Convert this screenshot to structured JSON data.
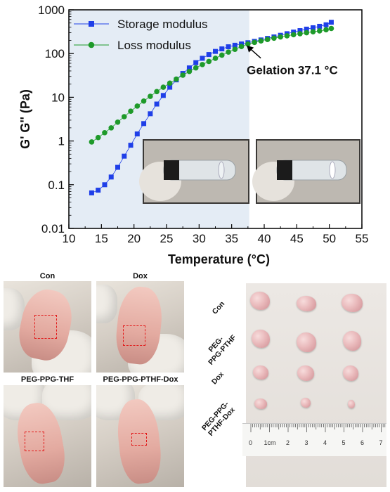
{
  "chart_data": {
    "type": "scatter",
    "xlabel": "Temperature (°C)",
    "ylabel": "G' G'' (Pa)",
    "xlim": [
      10,
      55
    ],
    "ylim": [
      0.01,
      1000
    ],
    "yscale": "log",
    "xticks": [
      "10",
      "15",
      "20",
      "25",
      "30",
      "35",
      "40",
      "45",
      "50",
      "55"
    ],
    "yticks": [
      "0.01",
      "0.1",
      "1",
      "10",
      "100",
      "1000"
    ],
    "legend_position": "top-left",
    "shaded_region": [
      10,
      37.7
    ],
    "shade_color": "#e4ecf5",
    "annotation": {
      "text": "Gelation 37.1 °C",
      "x": 37.1,
      "y": 165
    },
    "series": [
      {
        "name": "Storage modulus",
        "marker": "square",
        "color": "#1f3fe8",
        "x": [
          13.5,
          14.5,
          15.5,
          16.5,
          17.5,
          18.5,
          19.5,
          20.5,
          21.5,
          22.5,
          23.5,
          24.5,
          25.5,
          26.5,
          27.5,
          28.5,
          29.5,
          30.5,
          31.5,
          32.5,
          33.5,
          34.5,
          35.5,
          36.5,
          37.5,
          38.5,
          39.5,
          40.5,
          41.5,
          42.5,
          43.5,
          44.5,
          45.5,
          46.5,
          47.5,
          48.5,
          49.5,
          50.3
        ],
        "y": [
          0.065,
          0.075,
          0.1,
          0.15,
          0.25,
          0.45,
          0.8,
          1.45,
          2.5,
          4.2,
          7,
          11,
          17,
          25,
          35,
          47,
          62,
          78,
          95,
          112,
          128,
          143,
          155,
          166,
          177,
          190,
          205,
          222,
          240,
          262,
          285,
          310,
          335,
          362,
          390,
          420,
          455,
          520
        ]
      },
      {
        "name": "Loss modulus",
        "marker": "circle",
        "color": "#1e9a2a",
        "x": [
          13.5,
          14.5,
          15.5,
          16.5,
          17.5,
          18.5,
          19.5,
          20.5,
          21.5,
          22.5,
          23.5,
          24.5,
          25.5,
          26.5,
          27.5,
          28.5,
          29.5,
          30.5,
          31.5,
          32.5,
          33.5,
          34.5,
          35.5,
          36.5,
          37.5,
          38.5,
          39.5,
          40.5,
          41.5,
          42.5,
          43.5,
          44.5,
          45.5,
          46.5,
          47.5,
          48.5,
          49.5,
          50.3
        ],
        "y": [
          0.95,
          1.2,
          1.55,
          2.0,
          2.7,
          3.6,
          4.8,
          6.3,
          8.2,
          10.5,
          13.5,
          17,
          21,
          26,
          32,
          39,
          47,
          56,
          66,
          78,
          92,
          108,
          125,
          145,
          165,
          180,
          195,
          210,
          225,
          240,
          255,
          270,
          285,
          300,
          315,
          330,
          350,
          375
        ]
      }
    ]
  },
  "mice": {
    "labels": [
      "Con",
      "Dox",
      "PEG-PPG-THF",
      "PEG-PPG-PTHF-Dox"
    ]
  },
  "tumors": {
    "row_labels": [
      "Con",
      "PEG-\nPPG-PTHF",
      "Dox",
      "PEG-PPG-\nPTHF-Dox"
    ]
  },
  "ruler": {
    "labels": [
      "0",
      "1cm",
      "2",
      "3",
      "4",
      "5",
      "6",
      "7"
    ]
  }
}
